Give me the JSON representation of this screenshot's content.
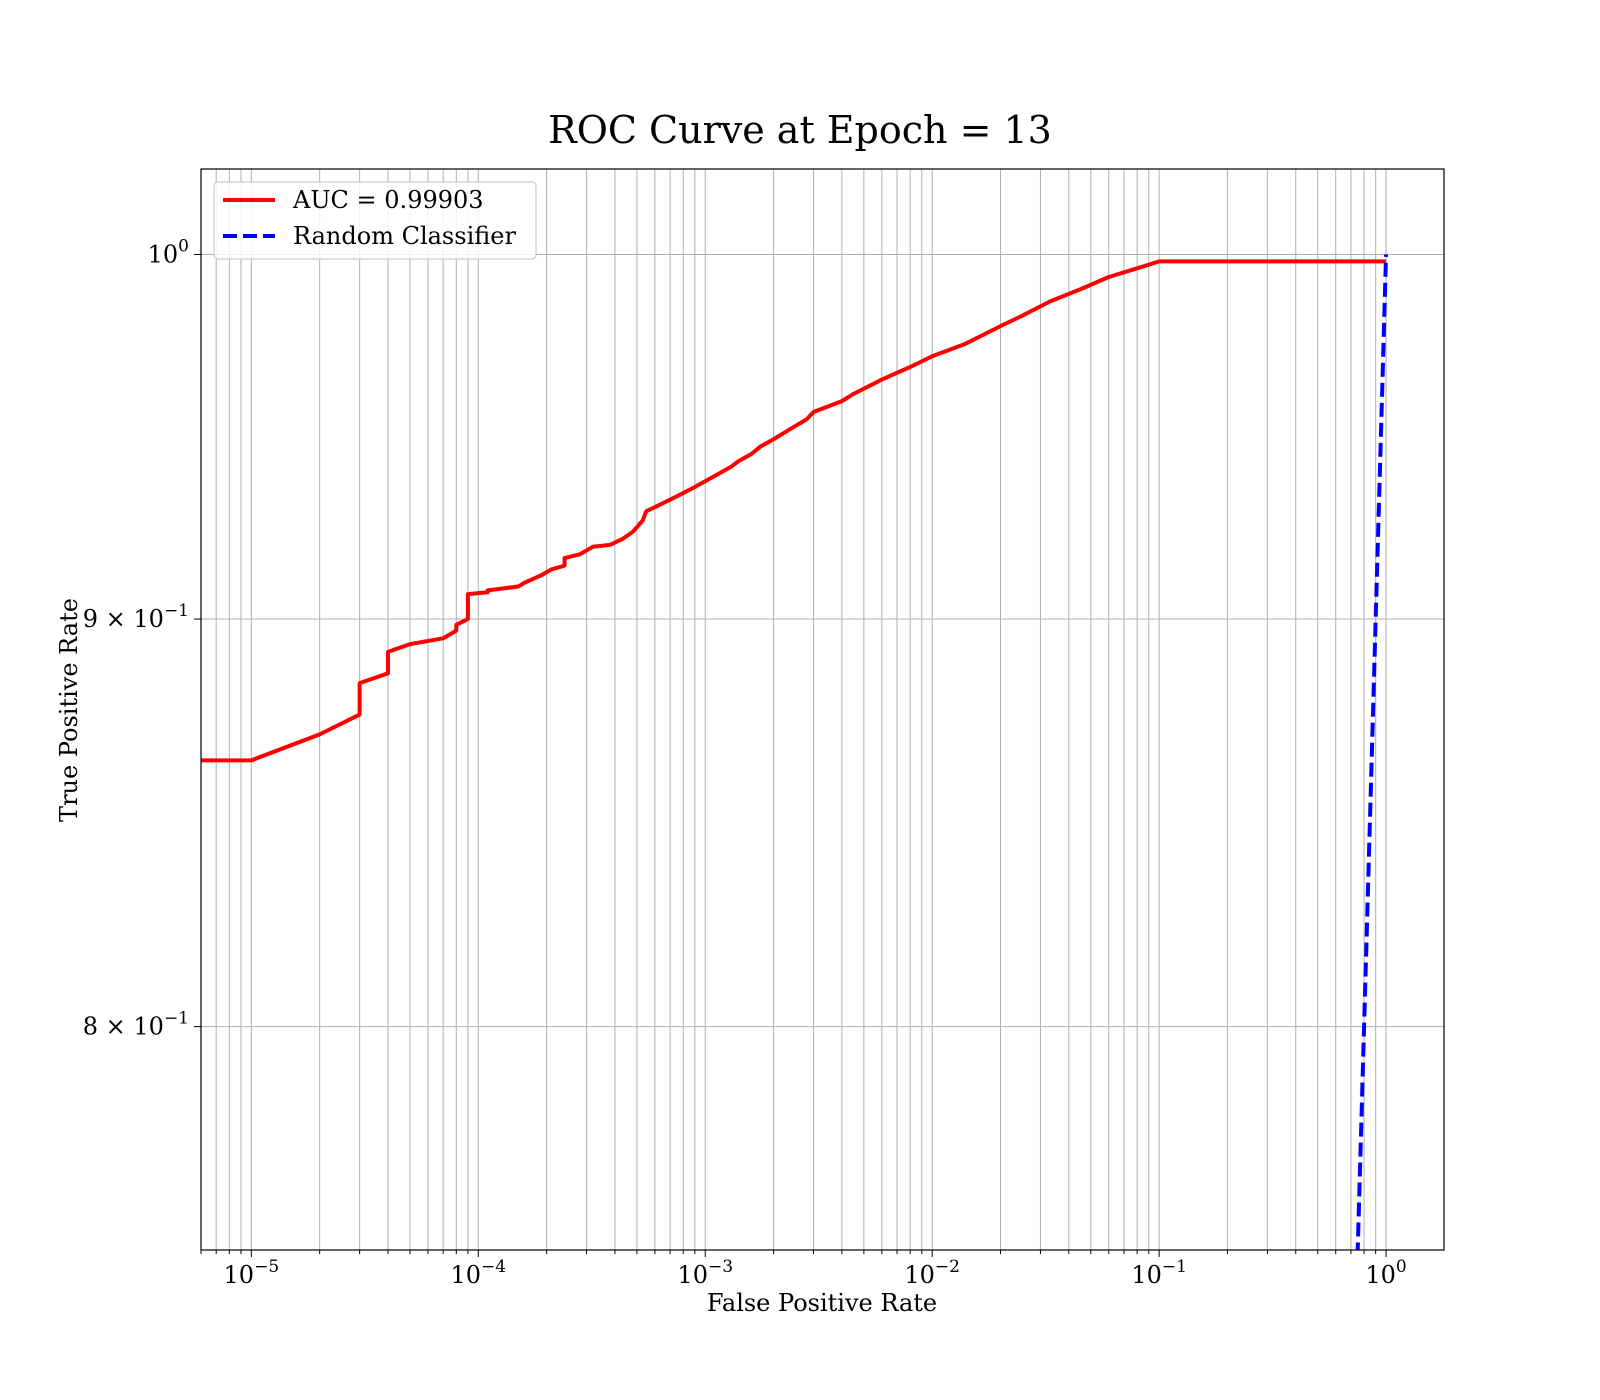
{
  "chart_data": {
    "type": "line",
    "title": "ROC Curve at Epoch = 13",
    "xlabel": "False Positive Rate",
    "ylabel": "True Positive Rate",
    "xscale": "log",
    "yscale": "log",
    "xlim": [
      6e-06,
      1.8
    ],
    "ylim": [
      0.75,
      1.025
    ],
    "grid": "both (major and minor)",
    "legend_position": "top-left",
    "x_ticks": [
      {
        "value": 1e-05,
        "base": "10",
        "exp": "−5"
      },
      {
        "value": 0.0001,
        "base": "10",
        "exp": "−4"
      },
      {
        "value": 0.001,
        "base": "10",
        "exp": "−3"
      },
      {
        "value": 0.01,
        "base": "10",
        "exp": "−2"
      },
      {
        "value": 0.1,
        "base": "10",
        "exp": "−1"
      },
      {
        "value": 1,
        "base": "10",
        "exp": "0"
      }
    ],
    "y_ticks": [
      {
        "value": 1.0,
        "mant": "",
        "base": "10",
        "exp": "0"
      },
      {
        "value": 0.9,
        "mant": "9 × ",
        "base": "10",
        "exp": "−1"
      },
      {
        "value": 0.8,
        "mant": "8 × ",
        "base": "10",
        "exp": "−1"
      }
    ],
    "series": [
      {
        "name": "AUC = 0.99903",
        "color": "#ff0000",
        "style": "solid",
        "points": [
          [
            6e-06,
            0.864
          ],
          [
            1e-05,
            0.864
          ],
          [
            2e-05,
            0.8705
          ],
          [
            3e-05,
            0.8755
          ],
          [
            3e-05,
            0.8835
          ],
          [
            4e-05,
            0.886
          ],
          [
            4e-05,
            0.8915
          ],
          [
            5e-05,
            0.8935
          ],
          [
            7e-05,
            0.895
          ],
          [
            8e-05,
            0.897
          ],
          [
            8e-05,
            0.8985
          ],
          [
            9e-05,
            0.9
          ],
          [
            9e-05,
            0.9065
          ],
          [
            0.00011,
            0.907
          ],
          [
            0.00011,
            0.9075
          ],
          [
            0.00015,
            0.9085
          ],
          [
            0.00016,
            0.9095
          ],
          [
            0.00019,
            0.9115
          ],
          [
            0.00021,
            0.913
          ],
          [
            0.00024,
            0.914
          ],
          [
            0.00024,
            0.916
          ],
          [
            0.00028,
            0.917
          ],
          [
            0.00032,
            0.919
          ],
          [
            0.00038,
            0.9195
          ],
          [
            0.00043,
            0.921
          ],
          [
            0.00048,
            0.923
          ],
          [
            0.00053,
            0.926
          ],
          [
            0.00055,
            0.9285
          ],
          [
            0.00062,
            0.93
          ],
          [
            0.00075,
            0.9325
          ],
          [
            0.0009,
            0.935
          ],
          [
            0.0011,
            0.938
          ],
          [
            0.0013,
            0.9405
          ],
          [
            0.0014,
            0.942
          ],
          [
            0.0016,
            0.944
          ],
          [
            0.00175,
            0.946
          ],
          [
            0.002,
            0.948
          ],
          [
            0.0024,
            0.951
          ],
          [
            0.0028,
            0.9535
          ],
          [
            0.003,
            0.9555
          ],
          [
            0.004,
            0.9585
          ],
          [
            0.0045,
            0.9605
          ],
          [
            0.006,
            0.9645
          ],
          [
            0.008,
            0.968
          ],
          [
            0.01,
            0.971
          ],
          [
            0.014,
            0.9745
          ],
          [
            0.02,
            0.9795
          ],
          [
            0.025,
            0.9825
          ],
          [
            0.033,
            0.9865
          ],
          [
            0.045,
            0.99
          ],
          [
            0.06,
            0.9935
          ],
          [
            0.08,
            0.996
          ],
          [
            0.1,
            0.998
          ],
          [
            0.15,
            0.998
          ],
          [
            1,
            0.998
          ]
        ]
      },
      {
        "name": "Random Classifier",
        "color": "#0000ff",
        "style": "dashed",
        "points": [
          [
            0.74,
            0.74
          ],
          [
            1,
            1
          ]
        ]
      }
    ]
  }
}
